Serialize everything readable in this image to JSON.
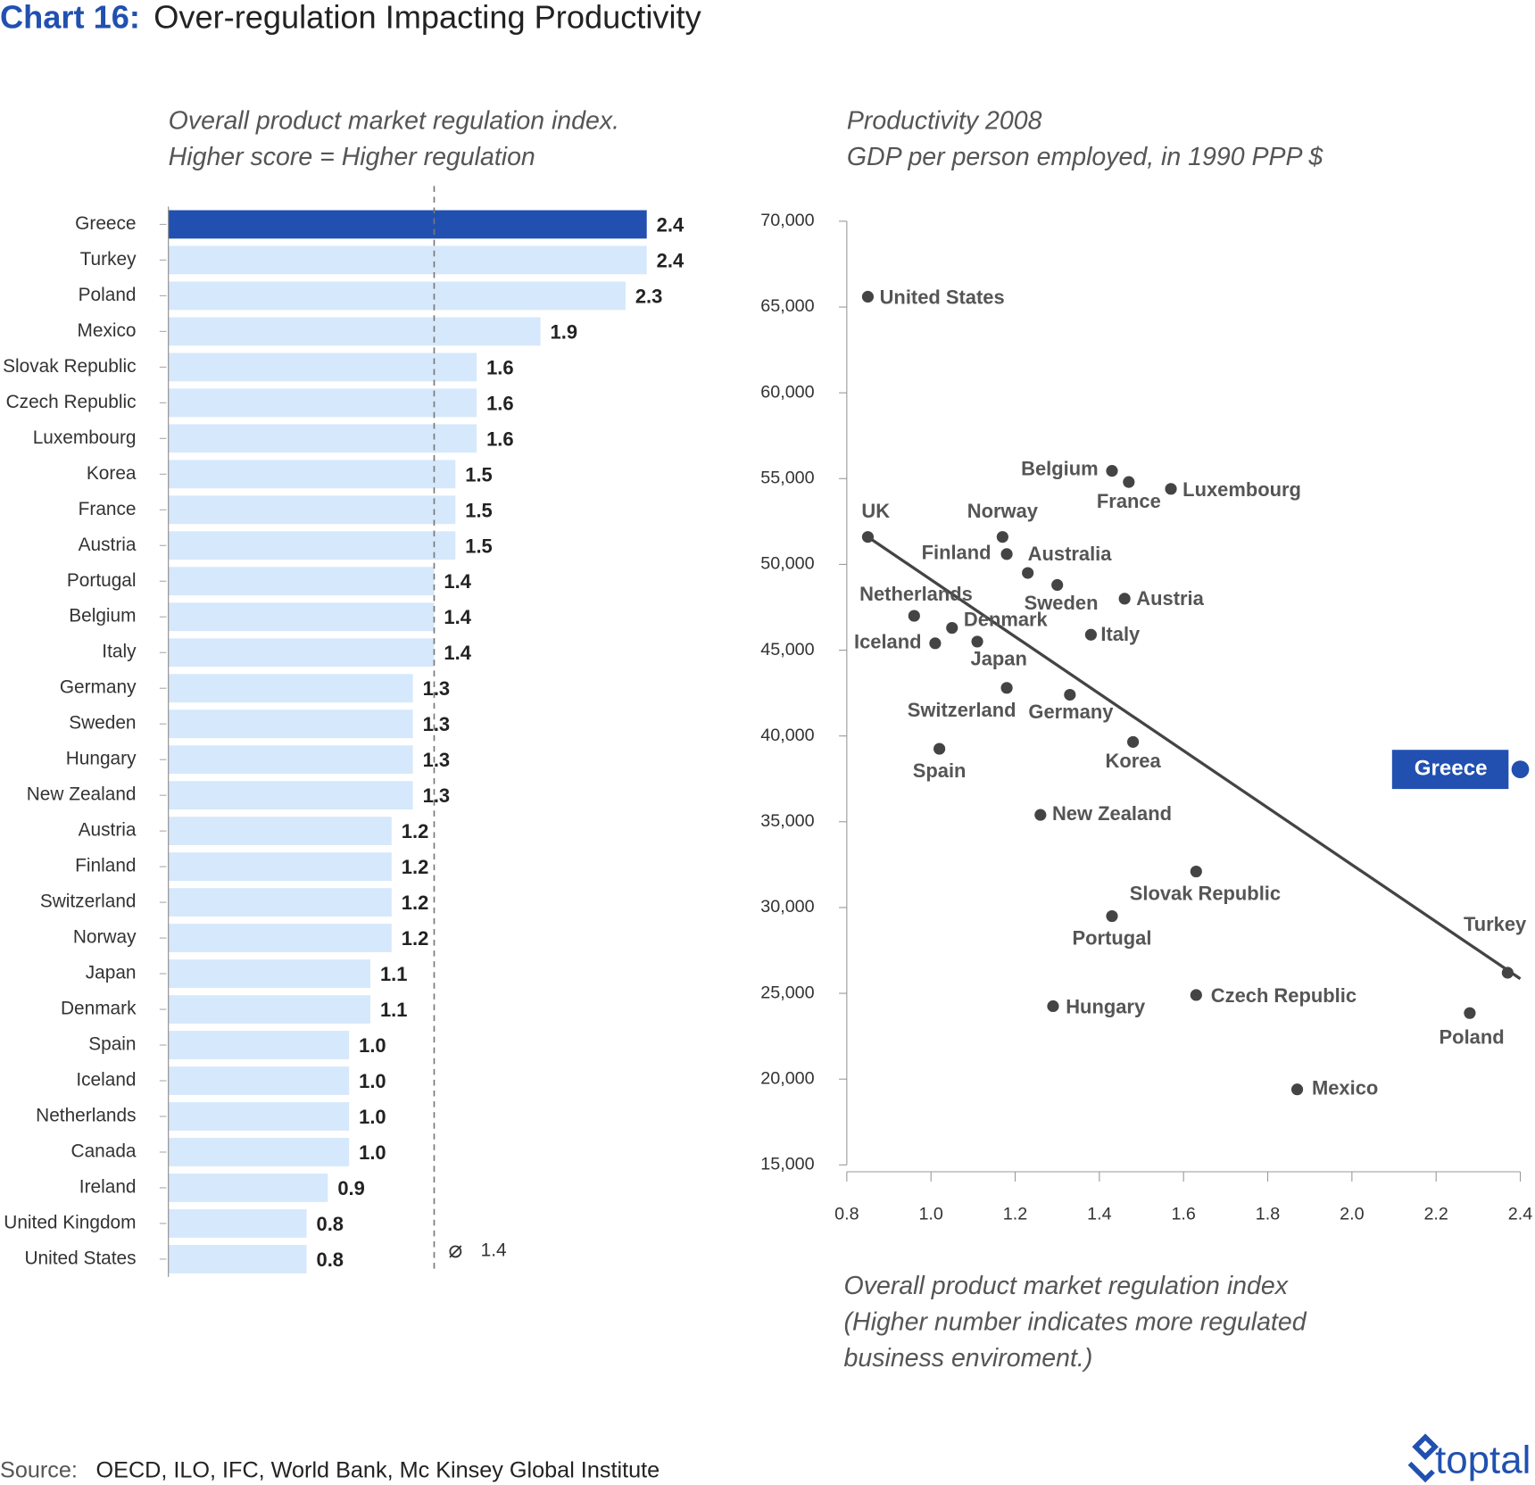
{
  "header": {
    "label": "Chart 16:",
    "title": "Over-regulation Impacting Productivity"
  },
  "source": {
    "label": "Source:",
    "text": "OECD, ILO, IFC, World Bank, Mc Kinsey Global Institute"
  },
  "logo": "toptal",
  "chart_data": [
    {
      "type": "hbar",
      "subtitle": [
        "Overall product market regulation index.",
        "Higher score = Higher regulation"
      ],
      "categories": [
        "Greece",
        "Turkey",
        "Poland",
        "Mexico",
        "Slovak Republic",
        "Czech Republic",
        "Luxembourg",
        "Korea",
        "France",
        "Austria",
        "Portugal",
        "Belgium",
        "Italy",
        "Germany",
        "Sweden",
        "Hungary",
        "New Zealand",
        "Austria",
        "Finland",
        "Switzerland",
        "Norway",
        "Japan",
        "Denmark",
        "Spain",
        "Iceland",
        "Netherlands",
        "Canada",
        "Ireland",
        "United Kingdom",
        "United States"
      ],
      "values": [
        2.4,
        2.4,
        2.3,
        1.9,
        1.6,
        1.6,
        1.6,
        1.5,
        1.5,
        1.5,
        1.4,
        1.4,
        1.4,
        1.3,
        1.3,
        1.3,
        1.3,
        1.2,
        1.2,
        1.2,
        1.2,
        1.1,
        1.1,
        1.0,
        1.0,
        1.0,
        1.0,
        0.9,
        0.8,
        0.8
      ],
      "value_labels": [
        "2.4",
        "2.4",
        "2.3",
        "1.9",
        "1.6",
        "1.6",
        "1.6",
        "1.5",
        "1.5",
        "1.5",
        "1.4",
        "1.4",
        "1.4",
        "1.3",
        "1.3",
        "1.3",
        "1.3",
        "1.2",
        "1.2",
        "1.2",
        "1.2",
        "1.1",
        "1.1",
        "1.0",
        "1.0",
        "1.0",
        "1.0",
        "0.9",
        "0.8",
        "0.8"
      ],
      "colors": [
        "#2150b0",
        "#d6e8fb",
        "#d6e8fb",
        "#d6e8fb",
        "#d6e8fb",
        "#d6e8fb",
        "#d6e8fb",
        "#d6e8fb",
        "#d6e8fb",
        "#d6e8fb",
        "#d6e8fb",
        "#d6e8fb",
        "#d6e8fb",
        "#d6e8fb",
        "#d6e8fb",
        "#d6e8fb",
        "#d6e8fb",
        "#d6e8fb",
        "#d6e8fb",
        "#d6e8fb",
        "#d6e8fb",
        "#d6e8fb",
        "#d6e8fb",
        "#d6e8fb",
        "#d6e8fb",
        "#d6e8fb",
        "#d6e8fb",
        "#d6e8fb",
        "#d6e8fb",
        "#d6e8fb"
      ],
      "xlim": [
        0.15,
        2.42
      ],
      "average": 1.4
    },
    {
      "type": "scatter",
      "subtitle": [
        "Productivity 2008",
        "GDP per person employed, in 1990 PPP $"
      ],
      "x_label": [
        "Overall product market regulation index",
        "(Higher number indicates more regulated",
        "business enviroment.)"
      ],
      "labels": [
        "United States",
        "UK",
        "Belgium",
        "France",
        "Luxembourg",
        "Norway",
        "Finland",
        "Australia",
        "Sweden",
        "Austria",
        "Netherlands",
        "Denmark",
        "Iceland",
        "Japan",
        "Italy",
        "Switzerland",
        "Germany",
        "Korea",
        "Spain",
        "New Zealand",
        "Slovak Republic",
        "Portugal",
        "Turkey",
        "Czech Republic",
        "Hungary",
        "Poland",
        "Mexico",
        "Greece"
      ],
      "x": [
        0.85,
        0.85,
        1.43,
        1.47,
        1.57,
        1.17,
        1.18,
        1.23,
        1.3,
        1.46,
        0.96,
        1.05,
        1.01,
        1.11,
        1.38,
        1.18,
        1.33,
        1.48,
        1.02,
        1.26,
        1.63,
        1.43,
        2.37,
        1.63,
        1.29,
        2.28,
        1.87,
        2.4
      ],
      "y": [
        65600,
        51600,
        55450,
        54800,
        54400,
        51600,
        50600,
        49500,
        48800,
        48000,
        47000,
        46300,
        45400,
        45500,
        45900,
        42800,
        42400,
        39650,
        39250,
        35400,
        32100,
        29500,
        26200,
        24900,
        24250,
        23850,
        19400,
        38050
      ],
      "colors": [
        "#444444",
        "#444444",
        "#444444",
        "#444444",
        "#444444",
        "#444444",
        "#444444",
        "#444444",
        "#444444",
        "#444444",
        "#444444",
        "#444444",
        "#444444",
        "#444444",
        "#444444",
        "#444444",
        "#444444",
        "#444444",
        "#444444",
        "#444444",
        "#444444",
        "#444444",
        "#444444",
        "#444444",
        "#444444",
        "#444444",
        "#444444",
        "#2150b0"
      ],
      "trendline": {
        "x": [
          0.85,
          2.4
        ],
        "y": [
          51600,
          25850
        ]
      },
      "xlim": [
        0.8,
        2.4
      ],
      "ylim": [
        15000,
        70000
      ],
      "xticks": [
        {
          "value": 0.8,
          "label": "0.8"
        },
        {
          "value": 1.0,
          "label": "1.0"
        },
        {
          "value": 1.2,
          "label": "1.2"
        },
        {
          "value": 1.4,
          "label": "1.4"
        },
        {
          "value": 1.6,
          "label": "1.6"
        },
        {
          "value": 1.8,
          "label": "1.8"
        },
        {
          "value": 2.0,
          "label": "2.0"
        },
        {
          "value": 2.2,
          "label": "2.2"
        },
        {
          "value": 2.4,
          "label": "2.4"
        }
      ],
      "yticks": [
        {
          "value": 15000,
          "label": "15,000"
        },
        {
          "value": 20000,
          "label": "20,000"
        },
        {
          "value": 25000,
          "label": "25,000"
        },
        {
          "value": 30000,
          "label": "30,000"
        },
        {
          "value": 35000,
          "label": "35,000"
        },
        {
          "value": 40000,
          "label": "40,000"
        },
        {
          "value": 45000,
          "label": "45,000"
        },
        {
          "value": 50000,
          "label": "50,000"
        },
        {
          "value": 55000,
          "label": "55,000"
        },
        {
          "value": 60000,
          "label": "60,000"
        },
        {
          "value": 65000,
          "label": "65,000"
        },
        {
          "value": 70000,
          "label": "70,000"
        }
      ]
    }
  ]
}
